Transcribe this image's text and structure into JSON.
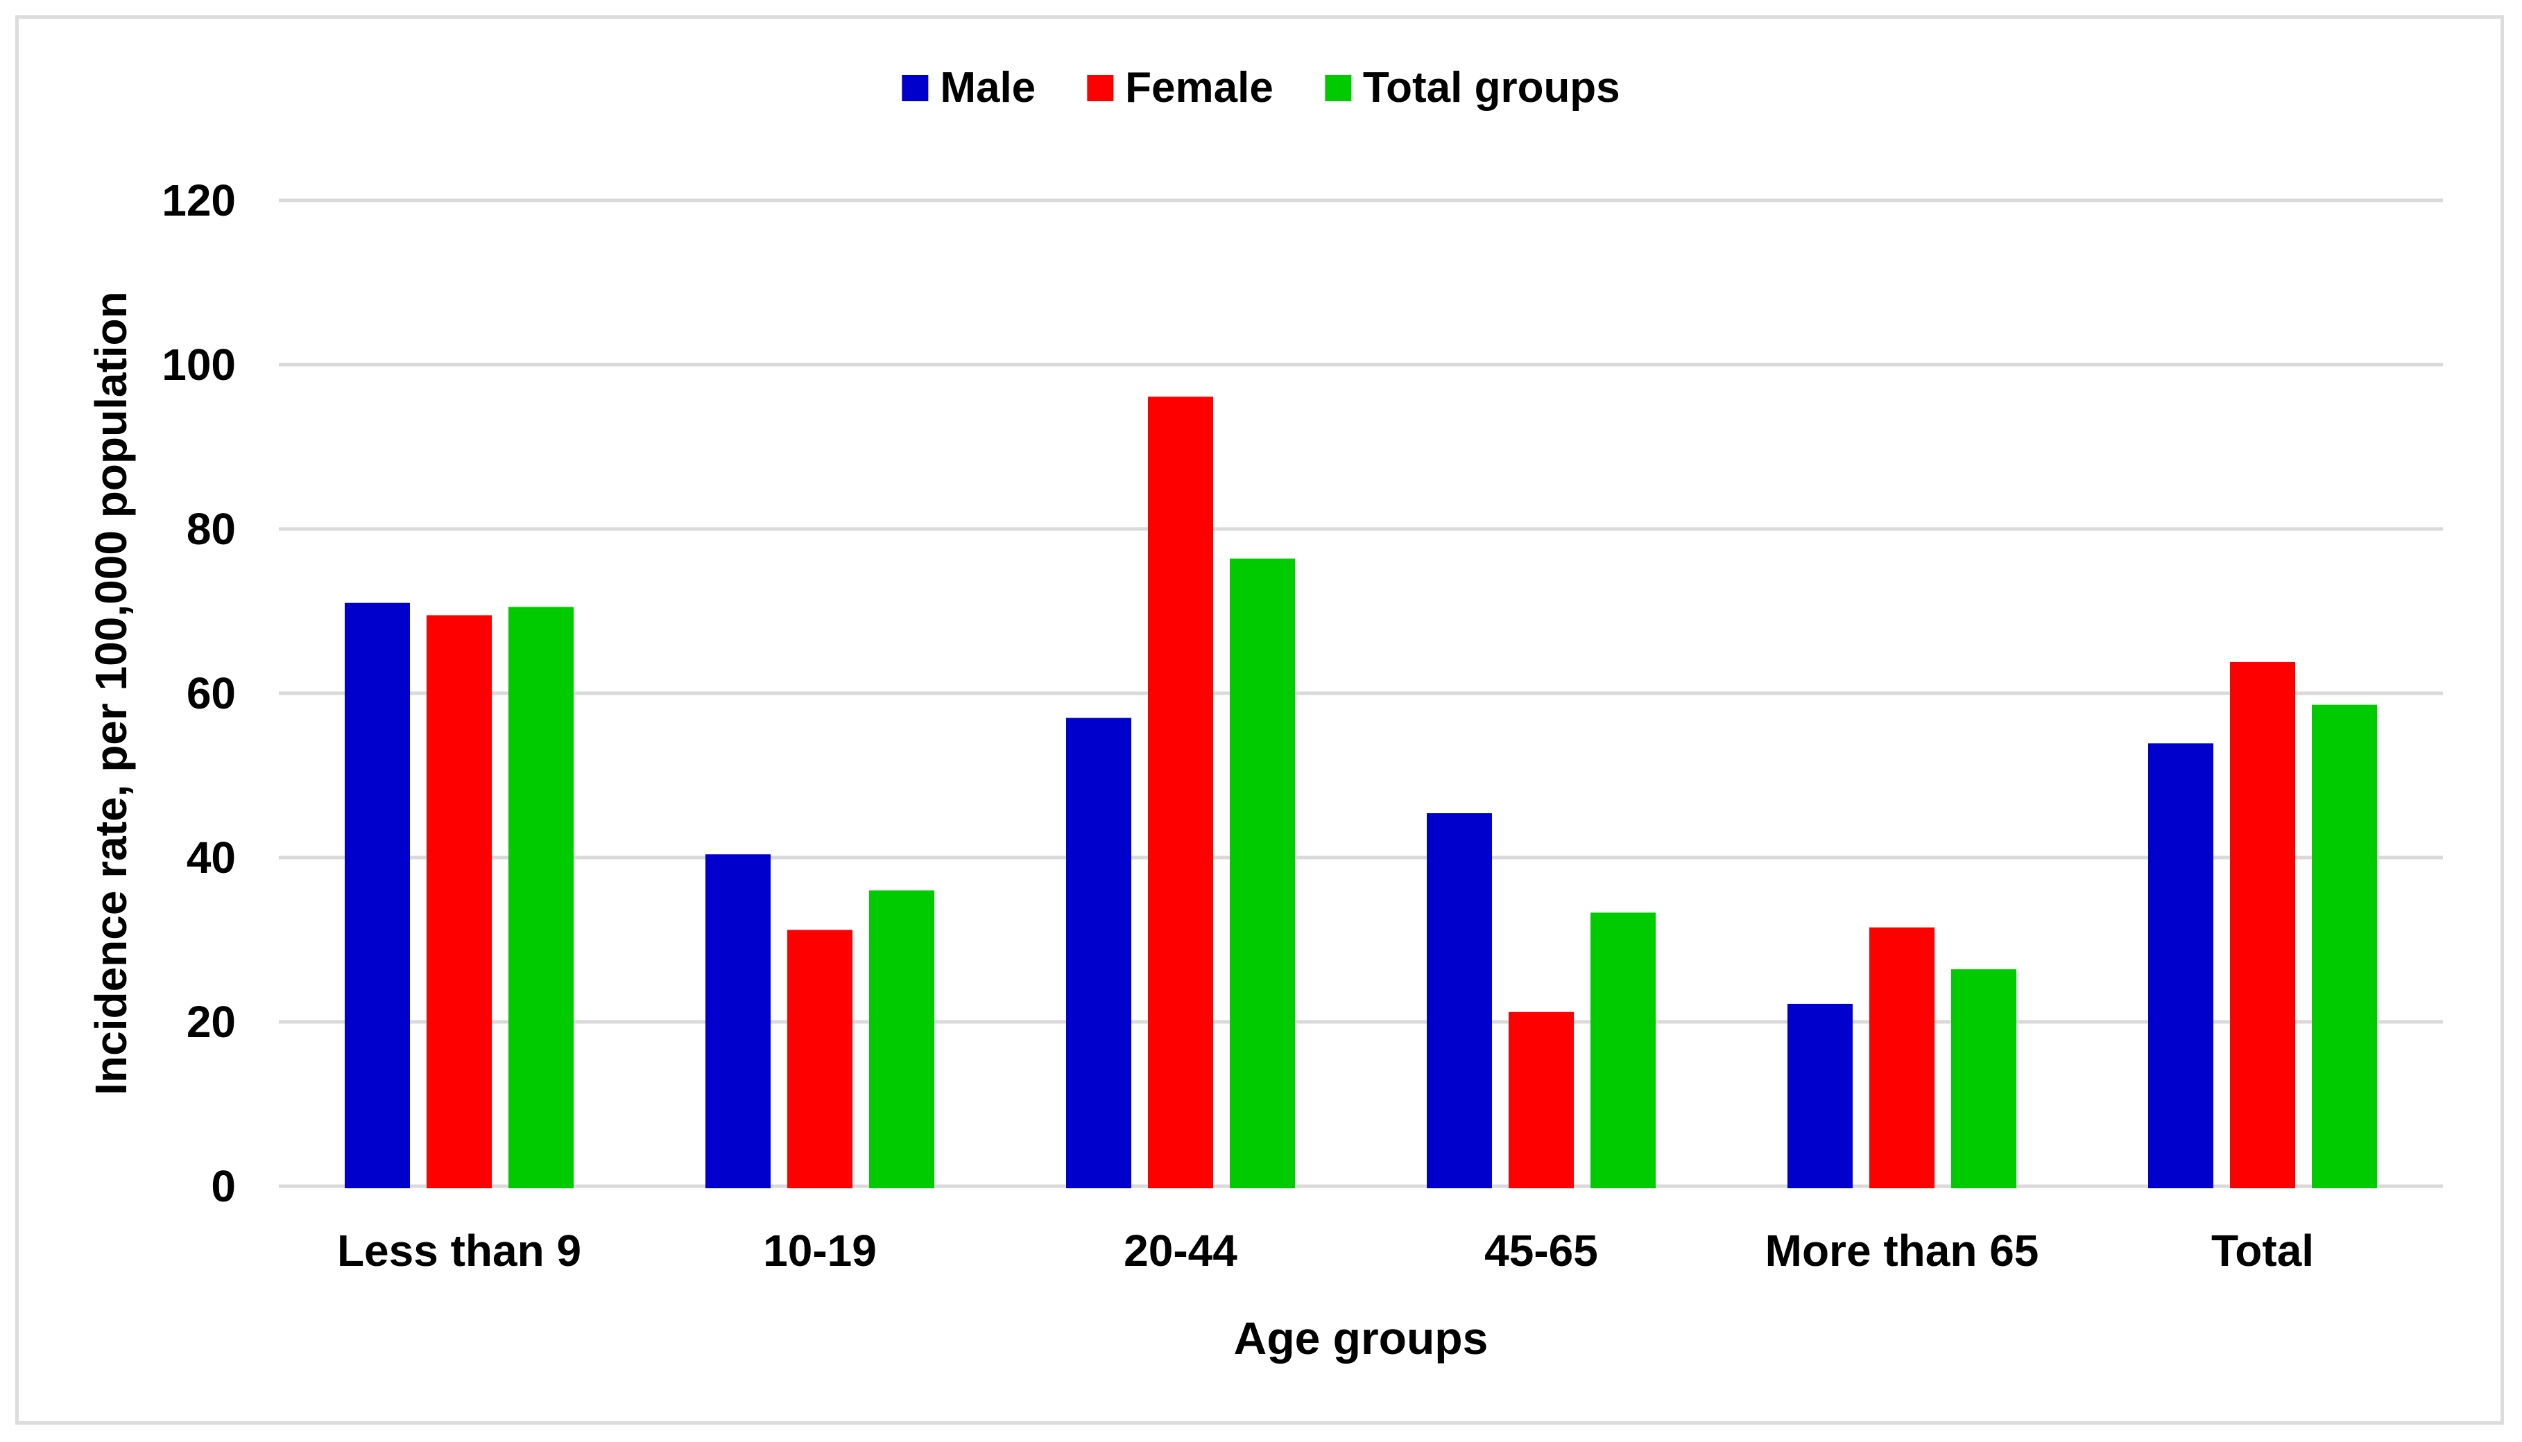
{
  "figure": {
    "background_color": "#FFFFFF",
    "border_color": "#DCDCDC"
  },
  "legend": {
    "position": "top-center",
    "items": [
      {
        "label": "Male",
        "color": "#0000CC"
      },
      {
        "label": "Female",
        "color": "#FE0000"
      },
      {
        "label": "Total groups",
        "color": "#00CB00"
      }
    ]
  },
  "chart_data": {
    "type": "bar",
    "title": "",
    "categories": [
      "Less than 9",
      "10-19",
      "20-44",
      "45-65",
      "More than 65",
      "Total"
    ],
    "series": [
      {
        "name": "Male",
        "color": "#0000CC",
        "values": [
          71.0,
          40.4,
          57.0,
          45.4,
          22.2,
          53.9
        ]
      },
      {
        "name": "Female",
        "color": "#FE0000",
        "values": [
          69.5,
          31.2,
          96.1,
          21.2,
          31.5,
          63.8
        ]
      },
      {
        "name": "Total groups",
        "color": "#00CB00",
        "values": [
          70.5,
          36.0,
          76.4,
          33.3,
          26.4,
          58.6
        ]
      }
    ],
    "xlabel": "Age groups",
    "ylabel": "Incidence rate, per 100,000 population",
    "ylim": [
      0,
      120
    ],
    "yticks": [
      0,
      20,
      40,
      60,
      80,
      100,
      120
    ],
    "ytick_labels": [
      "0",
      "20",
      "40",
      "60",
      "80",
      "100",
      "120"
    ],
    "grid": true,
    "gridline_color": "#D9D9D9",
    "legend_position": "top"
  }
}
